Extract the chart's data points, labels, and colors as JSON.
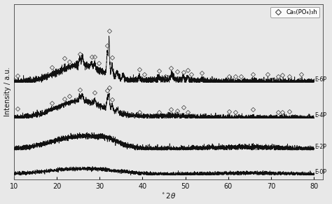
{
  "xlabel": "$^\\circ$2$\\theta$",
  "ylabel": "Intensity / a.u.",
  "xlim": [
    10,
    80
  ],
  "legend_label": "Ca₅(PO₄)₃h",
  "series_labels": [
    "E-6P",
    "E-4P",
    "E-2P",
    "E-0P"
  ],
  "offsets": [
    1.55,
    0.95,
    0.42,
    0.0
  ],
  "background_color": "#e8e8e8",
  "plot_bg_color": "#e8e8e8",
  "line_color": "#111111",
  "tick_color": "#111111",
  "xticks": [
    10,
    20,
    30,
    40,
    50,
    60,
    70,
    80
  ],
  "hap_peaks_6p": [
    10.8,
    18.9,
    21.8,
    22.9,
    25.4,
    28.1,
    28.9,
    29.8,
    31.8,
    32.2,
    32.9,
    39.2,
    40.5,
    43.8,
    45.3,
    46.7,
    48.1,
    49.5,
    50.5,
    51.3,
    53.8,
    60.1,
    61.7,
    63.0,
    65.8,
    69.1,
    71.6,
    72.6,
    74.2,
    77.0
  ],
  "hap_peaks_4p": [
    10.8,
    18.9,
    21.8,
    22.9,
    25.4,
    28.9,
    31.8,
    32.2,
    32.9,
    39.2,
    43.8,
    46.7,
    48.1,
    49.5,
    50.5,
    60.1,
    61.7,
    65.8,
    71.6,
    72.6,
    74.2
  ]
}
